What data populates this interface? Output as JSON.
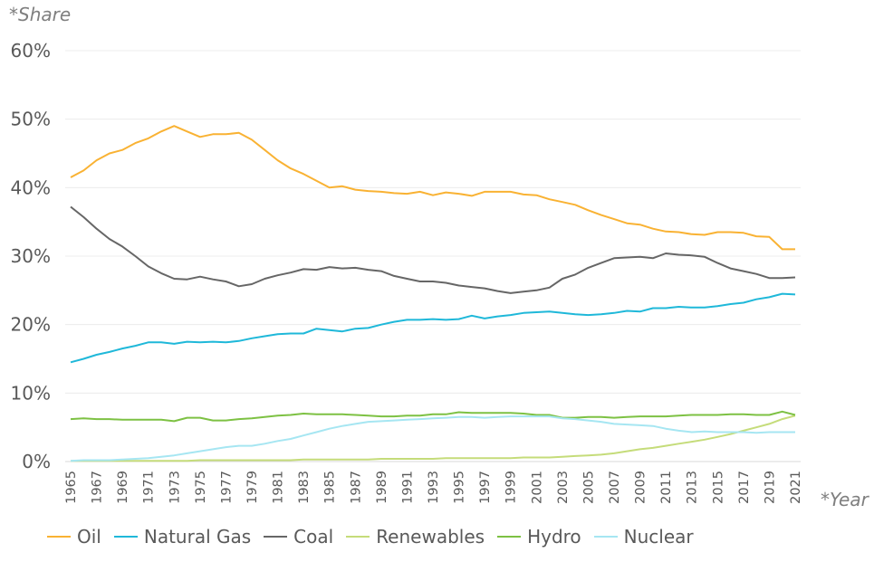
{
  "chart_data": {
    "type": "line",
    "ylabel": "*Share",
    "xlabel": "*Year",
    "ylim": [
      0,
      60
    ],
    "yticks": [
      "0%",
      "10%",
      "20%",
      "30%",
      "40%",
      "50%",
      "60%"
    ],
    "grid": true,
    "legend_position": "bottom",
    "x": [
      1965,
      1966,
      1967,
      1968,
      1969,
      1970,
      1971,
      1972,
      1973,
      1974,
      1975,
      1976,
      1977,
      1978,
      1979,
      1980,
      1981,
      1982,
      1983,
      1984,
      1985,
      1986,
      1987,
      1988,
      1989,
      1990,
      1991,
      1992,
      1993,
      1994,
      1995,
      1996,
      1997,
      1998,
      1999,
      2000,
      2001,
      2002,
      2003,
      2004,
      2005,
      2006,
      2007,
      2008,
      2009,
      2010,
      2011,
      2012,
      2013,
      2014,
      2015,
      2016,
      2017,
      2018,
      2019,
      2020,
      2021
    ],
    "xtick_labels": [
      "1965",
      "1967",
      "1969",
      "1971",
      "1973",
      "1975",
      "1977",
      "1979",
      "1981",
      "1983",
      "1985",
      "1987",
      "1989",
      "1991",
      "1993",
      "1995",
      "1997",
      "1999",
      "2001",
      "2003",
      "2005",
      "2007",
      "2009",
      "2011",
      "2013",
      "2015",
      "2017",
      "2019",
      "2021"
    ],
    "series": [
      {
        "name": "Oil",
        "color": "#f9b233",
        "values": [
          41.5,
          42.5,
          44.0,
          45.0,
          45.5,
          46.5,
          47.2,
          48.2,
          49.0,
          48.2,
          47.4,
          47.8,
          47.8,
          48.0,
          47.0,
          45.5,
          44.0,
          42.8,
          42.0,
          41.0,
          40.0,
          40.2,
          39.7,
          39.5,
          39.4,
          39.2,
          39.1,
          39.4,
          38.9,
          39.3,
          39.1,
          38.8,
          39.4,
          39.4,
          39.4,
          39.0,
          38.9,
          38.3,
          37.9,
          37.5,
          36.7,
          36.0,
          35.4,
          34.8,
          34.6,
          34.0,
          33.6,
          33.5,
          33.2,
          33.1,
          33.5,
          33.5,
          33.4,
          32.9,
          32.8,
          31.0,
          31.0
        ]
      },
      {
        "name": "Natural Gas",
        "color": "#1fb8d9",
        "values": [
          14.5,
          15.0,
          15.6,
          16.0,
          16.5,
          16.9,
          17.4,
          17.4,
          17.2,
          17.5,
          17.4,
          17.5,
          17.4,
          17.6,
          18.0,
          18.3,
          18.6,
          18.7,
          18.7,
          19.4,
          19.2,
          19.0,
          19.4,
          19.5,
          20.0,
          20.4,
          20.7,
          20.7,
          20.8,
          20.7,
          20.8,
          21.3,
          20.9,
          21.2,
          21.4,
          21.7,
          21.8,
          21.9,
          21.7,
          21.5,
          21.4,
          21.5,
          21.7,
          22.0,
          21.9,
          22.4,
          22.4,
          22.6,
          22.5,
          22.5,
          22.7,
          23.0,
          23.2,
          23.7,
          24.0,
          24.5,
          24.4
        ]
      },
      {
        "name": "Coal",
        "color": "#666666",
        "values": [
          37.2,
          35.7,
          34.0,
          32.5,
          31.4,
          30.0,
          28.5,
          27.5,
          26.7,
          26.6,
          27.0,
          26.6,
          26.3,
          25.6,
          25.9,
          26.7,
          27.2,
          27.6,
          28.1,
          28.0,
          28.4,
          28.2,
          28.3,
          28.0,
          27.8,
          27.1,
          26.7,
          26.3,
          26.3,
          26.1,
          25.7,
          25.5,
          25.3,
          24.9,
          24.6,
          24.8,
          25.0,
          25.4,
          26.7,
          27.3,
          28.3,
          29.0,
          29.7,
          29.8,
          29.9,
          29.7,
          30.4,
          30.2,
          30.1,
          29.9,
          29.0,
          28.2,
          27.8,
          27.4,
          26.8,
          26.8,
          26.9
        ]
      },
      {
        "name": "Renewables",
        "color": "#c5dc7a",
        "values": [
          0.1,
          0.1,
          0.1,
          0.1,
          0.1,
          0.1,
          0.1,
          0.1,
          0.1,
          0.1,
          0.2,
          0.2,
          0.2,
          0.2,
          0.2,
          0.2,
          0.2,
          0.2,
          0.3,
          0.3,
          0.3,
          0.3,
          0.3,
          0.3,
          0.4,
          0.4,
          0.4,
          0.4,
          0.4,
          0.5,
          0.5,
          0.5,
          0.5,
          0.5,
          0.5,
          0.6,
          0.6,
          0.6,
          0.7,
          0.8,
          0.9,
          1.0,
          1.2,
          1.5,
          1.8,
          2.0,
          2.3,
          2.6,
          2.9,
          3.2,
          3.6,
          4.0,
          4.5,
          5.0,
          5.5,
          6.2,
          6.7
        ]
      },
      {
        "name": "Hydro",
        "color": "#7dc143",
        "values": [
          6.2,
          6.3,
          6.2,
          6.2,
          6.1,
          6.1,
          6.1,
          6.1,
          5.9,
          6.4,
          6.4,
          6.0,
          6.0,
          6.2,
          6.3,
          6.5,
          6.7,
          6.8,
          7.0,
          6.9,
          6.9,
          6.9,
          6.8,
          6.7,
          6.6,
          6.6,
          6.7,
          6.7,
          6.9,
          6.9,
          7.2,
          7.1,
          7.1,
          7.1,
          7.1,
          7.0,
          6.8,
          6.8,
          6.4,
          6.4,
          6.5,
          6.5,
          6.4,
          6.5,
          6.6,
          6.6,
          6.6,
          6.7,
          6.8,
          6.8,
          6.8,
          6.9,
          6.9,
          6.8,
          6.8,
          7.3,
          6.8
        ]
      },
      {
        "name": "Nuclear",
        "color": "#a6e6f2",
        "values": [
          0.1,
          0.2,
          0.2,
          0.2,
          0.3,
          0.4,
          0.5,
          0.7,
          0.9,
          1.2,
          1.5,
          1.8,
          2.1,
          2.3,
          2.3,
          2.6,
          3.0,
          3.3,
          3.8,
          4.3,
          4.8,
          5.2,
          5.5,
          5.8,
          5.9,
          6.0,
          6.1,
          6.2,
          6.3,
          6.4,
          6.5,
          6.5,
          6.4,
          6.5,
          6.6,
          6.6,
          6.6,
          6.6,
          6.3,
          6.2,
          6.0,
          5.8,
          5.5,
          5.4,
          5.3,
          5.2,
          4.8,
          4.5,
          4.3,
          4.4,
          4.3,
          4.3,
          4.3,
          4.2,
          4.3,
          4.3,
          4.3
        ]
      }
    ]
  }
}
